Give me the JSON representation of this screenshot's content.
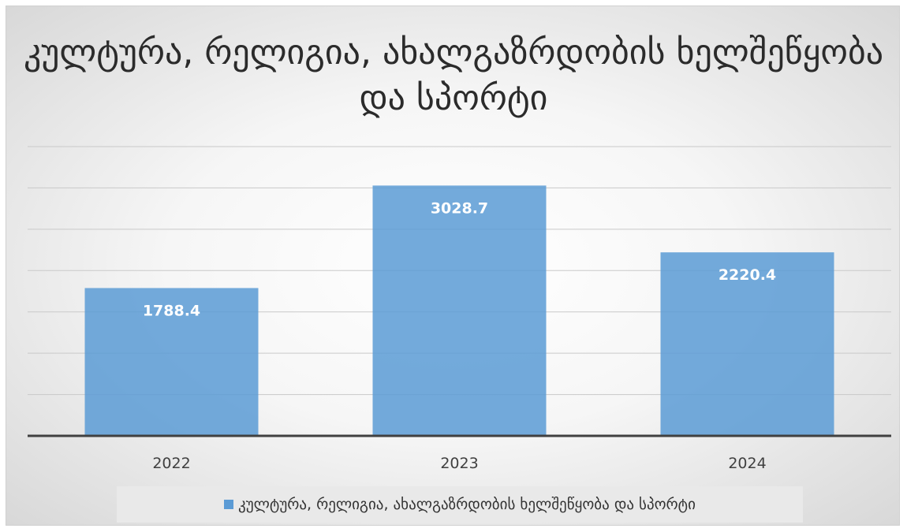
{
  "chart_data": {
    "type": "bar",
    "title": "კულტურა, რელიგია, ახალგაზრდობის ხელშეწყობა და სპორტი",
    "categories": [
      "2022",
      "2023",
      "2024"
    ],
    "series": [
      {
        "name": "კულტურა, რელიგია, ახალგაზრდობის ხელშეწყობა და სპორტი",
        "values": [
          1788.4,
          3028.7,
          2220.4
        ]
      }
    ],
    "ylim": [
      0,
      3500
    ],
    "grid": true,
    "legend": "bottom",
    "bar_color": "#5b9bd5",
    "data_label_color": "#ffffff",
    "gridline_color": "#c9c9c9",
    "axis_color": "#404040"
  }
}
